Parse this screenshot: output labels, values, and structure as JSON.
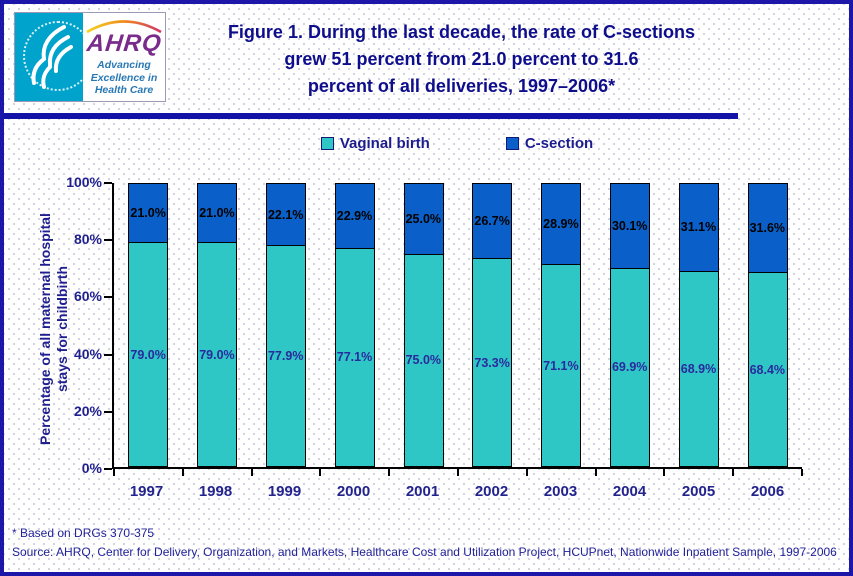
{
  "page": {
    "header": {
      "logo": {
        "org_abbr": "AHRQ",
        "tagline": [
          "Advancing",
          "Excellence in",
          "Health Care"
        ]
      },
      "title_lines": [
        "Figure 1. During the last decade, the rate of C-sections",
        "grew 51 percent from 21.0 percent to 31.6",
        "percent of all deliveries, 1997–2006*"
      ]
    },
    "footnotes": [
      "* Based on DRGs 370-375",
      "Source: AHRQ, Center for Delivery, Organization, and Markets, Healthcare Cost and Utilization Project, HCUPnet, Nationwide Inpatient Sample, 1997-2006"
    ]
  },
  "colors": {
    "navy_text": "#1c1c8f",
    "title_navy": "#0e0e8c",
    "header_rule_blue": "#1313a8",
    "page_border_navy": "#1c17a8",
    "logo_cyan": "#00a3cc",
    "logo_purple": "#7a2c8c",
    "logo_tagline_blue": "#2878b4"
  },
  "chart_data": {
    "type": "bar",
    "stacked": true,
    "categories": [
      "1997",
      "1998",
      "1999",
      "2000",
      "2001",
      "2002",
      "2003",
      "2004",
      "2005",
      "2006"
    ],
    "series": [
      {
        "name": "Vaginal birth",
        "color": "#2fc6c6",
        "label_color": "#2a2a9e",
        "values": [
          79.0,
          79.0,
          77.9,
          77.1,
          75.0,
          73.3,
          71.1,
          69.9,
          68.9,
          68.4
        ]
      },
      {
        "name": "C-section",
        "color": "#0a60c8",
        "label_color": "#000000",
        "values": [
          21.0,
          21.0,
          22.1,
          22.9,
          25.0,
          26.7,
          28.9,
          30.1,
          31.1,
          31.6
        ]
      }
    ],
    "ylabel_lines": [
      "Percentage of all maternal hospital",
      "stays for childbirth"
    ],
    "yticks": [
      "0%",
      "20%",
      "40%",
      "60%",
      "80%",
      "100%"
    ],
    "ylim": [
      0,
      100
    ],
    "grid": false,
    "legend_position": "top-center",
    "value_label_format": "one_decimal_percent"
  }
}
